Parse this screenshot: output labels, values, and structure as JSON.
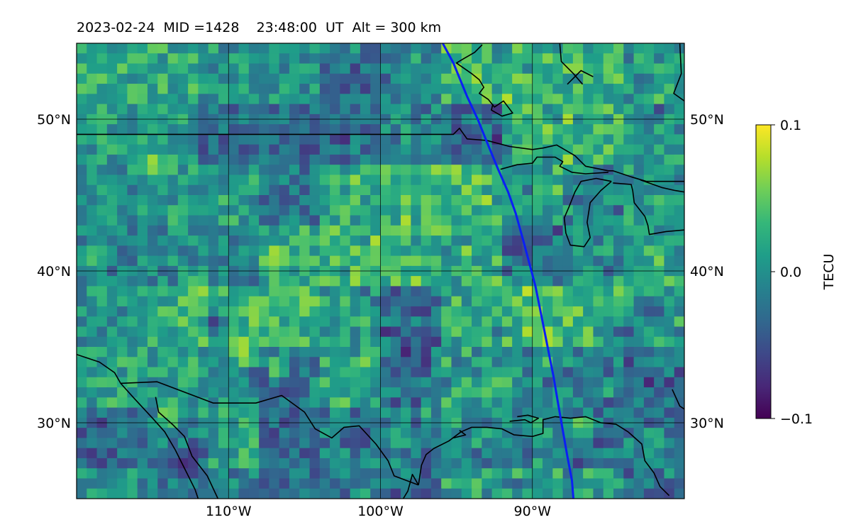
{
  "title": "2023-02-24  MID =1428    23:48:00  UT  Alt = 300 km",
  "map": {
    "lon_range": [
      -120,
      -80
    ],
    "lat_range": [
      25,
      55
    ],
    "meridians": [
      -110,
      -100,
      -90
    ],
    "parallels": [
      30,
      40,
      50
    ],
    "lon_labels": [
      "110°W",
      "100°W",
      "90°W"
    ],
    "lat_labels": [
      "30°N",
      "40°N",
      "50°N"
    ],
    "track_color": "#0b1ff5",
    "track": [
      [
        -95.9,
        55
      ],
      [
        -95.2,
        53.7
      ],
      [
        -94.3,
        51.5
      ],
      [
        -93.6,
        50
      ],
      [
        -93.0,
        48.5
      ],
      [
        -92.3,
        46.8
      ],
      [
        -91.6,
        45.2
      ],
      [
        -91.1,
        43.8
      ],
      [
        -90.6,
        42
      ],
      [
        -90.2,
        40.5
      ],
      [
        -89.8,
        39
      ],
      [
        -89.5,
        37.5
      ],
      [
        -89.2,
        36
      ],
      [
        -88.9,
        34.5
      ],
      [
        -88.6,
        33
      ],
      [
        -88.3,
        31.2
      ],
      [
        -88.0,
        29.5
      ],
      [
        -87.7,
        27.8
      ],
      [
        -87.4,
        26.2
      ],
      [
        -87.3,
        25
      ]
    ],
    "grid": {
      "nx": 60,
      "ny": 45,
      "tile": 6,
      "seed": 1428,
      "range": [
        -0.1,
        0.1
      ]
    },
    "hotspots": [
      {
        "lon": -115,
        "lat": 47,
        "val": 0.1
      },
      {
        "lon": -112,
        "lat": 39,
        "val": 0.1
      },
      {
        "lon": -114,
        "lat": 30.5,
        "val": 0.1
      },
      {
        "lon": -107,
        "lat": 41,
        "val": 0.1
      },
      {
        "lon": -109,
        "lat": 34.5,
        "val": 0.1
      },
      {
        "lon": -107,
        "lat": 33.5,
        "val": 0.1
      },
      {
        "lon": -112,
        "lat": 28,
        "val": -0.1
      },
      {
        "lon": -113,
        "lat": 27.2,
        "val": -0.1
      },
      {
        "lon": -101.5,
        "lat": 29,
        "val": -0.08
      },
      {
        "lon": -106,
        "lat": 32.3,
        "val": -0.1
      },
      {
        "lon": -108,
        "lat": 33,
        "val": -0.1
      },
      {
        "lon": -111,
        "lat": 36.5,
        "val": -0.09
      },
      {
        "lon": -86.7,
        "lat": 29.8,
        "val": 0.1
      },
      {
        "lon": -82,
        "lat": 37.5,
        "val": -0.09
      },
      {
        "lon": -84,
        "lat": 36,
        "val": -0.09
      },
      {
        "lon": -92,
        "lat": 32.5,
        "val": 0.08
      },
      {
        "lon": -94,
        "lat": 48.8,
        "val": -0.08
      },
      {
        "lon": -89,
        "lat": 49.2,
        "val": 0.09
      },
      {
        "lon": -91,
        "lat": 42,
        "val": -0.08
      },
      {
        "lon": -119,
        "lat": 41,
        "val": 0.07
      }
    ],
    "coastlines": [
      [
        [
          -120,
          49
        ],
        [
          -95.2,
          49
        ],
        [
          -94.8,
          49.4
        ],
        [
          -94.3,
          48.7
        ],
        [
          -93,
          48.6
        ],
        [
          -91.5,
          48.2
        ],
        [
          -90,
          48
        ],
        [
          -89.3,
          48.1
        ],
        [
          -88.4,
          48.3
        ],
        [
          -87.2,
          47.6
        ],
        [
          -86.5,
          46.9
        ],
        [
          -85,
          46.6
        ],
        [
          -84.7,
          46.6
        ],
        [
          -83.5,
          46.2
        ],
        [
          -82.5,
          45.9
        ],
        [
          -80,
          45.9
        ]
      ],
      [
        [
          -92.1,
          46.7
        ],
        [
          -91,
          47
        ],
        [
          -90,
          47.1
        ],
        [
          -89.7,
          47.5
        ],
        [
          -88.5,
          47.5
        ],
        [
          -88,
          47.2
        ],
        [
          -88.2,
          46.9
        ],
        [
          -87.4,
          46.5
        ],
        [
          -86.5,
          46.4
        ],
        [
          -85,
          46.5
        ]
      ],
      [
        [
          -84.8,
          45.9
        ],
        [
          -85.5,
          45.3
        ],
        [
          -86.2,
          44.5
        ],
        [
          -86.4,
          43.2
        ],
        [
          -86.2,
          42.2
        ],
        [
          -86.6,
          41.6
        ],
        [
          -87.5,
          41.7
        ],
        [
          -87.8,
          42.5
        ],
        [
          -87.9,
          43.5
        ],
        [
          -87.6,
          44.2
        ],
        [
          -87.2,
          45.2
        ],
        [
          -86.8,
          45.9
        ],
        [
          -85.8,
          46.1
        ],
        [
          -84.8,
          45.9
        ]
      ],
      [
        [
          -84.7,
          45.8
        ],
        [
          -83.5,
          45.7
        ],
        [
          -83.4,
          45.3
        ],
        [
          -83.3,
          44.5
        ],
        [
          -82.6,
          43.6
        ],
        [
          -82.4,
          43.0
        ],
        [
          -82.3,
          42.4
        ],
        [
          -81.2,
          42.6
        ],
        [
          -80,
          42.7
        ]
      ],
      [
        [
          -82.9,
          46.0
        ],
        [
          -81.5,
          45.5
        ],
        [
          -80.6,
          45.3
        ],
        [
          -80,
          45.2
        ]
      ],
      [
        [
          -120,
          34.5
        ],
        [
          -118.5,
          34
        ],
        [
          -117.5,
          33.3
        ],
        [
          -117.1,
          32.6
        ],
        [
          -116.2,
          31.6
        ],
        [
          -115,
          30.3
        ],
        [
          -114.2,
          29.4
        ],
        [
          -113.5,
          28.2
        ],
        [
          -112.8,
          26.8
        ],
        [
          -112.2,
          25.6
        ],
        [
          -112,
          25
        ]
      ],
      [
        [
          -114.8,
          31.7
        ],
        [
          -114.6,
          30.7
        ],
        [
          -113.7,
          29.9
        ],
        [
          -112.9,
          29.1
        ],
        [
          -112.4,
          27.8
        ],
        [
          -111.4,
          26.5
        ],
        [
          -110.7,
          25
        ]
      ],
      [
        [
          -117.1,
          32.6
        ],
        [
          -114.7,
          32.7
        ],
        [
          -111,
          31.3
        ],
        [
          -108.2,
          31.3
        ],
        [
          -106.5,
          31.8
        ],
        [
          -105,
          30.7
        ],
        [
          -104.3,
          29.6
        ],
        [
          -103.2,
          29.0
        ],
        [
          -102.4,
          29.7
        ],
        [
          -101.4,
          29.8
        ],
        [
          -100.3,
          28.6
        ],
        [
          -99.5,
          27.5
        ],
        [
          -99.1,
          26.5
        ],
        [
          -97.5,
          25.9
        ]
      ],
      [
        [
          -97.5,
          25.9
        ],
        [
          -97.3,
          27.2
        ],
        [
          -97.0,
          27.9
        ],
        [
          -96.5,
          28.3
        ],
        [
          -95.5,
          28.8
        ],
        [
          -94.7,
          29.4
        ],
        [
          -94,
          29.7
        ],
        [
          -93,
          29.7
        ],
        [
          -92,
          29.6
        ],
        [
          -91.2,
          29.2
        ],
        [
          -90,
          29.1
        ],
        [
          -89.3,
          29.3
        ],
        [
          -89.3,
          30.2
        ],
        [
          -88.5,
          30.4
        ],
        [
          -87.5,
          30.3
        ],
        [
          -86.5,
          30.4
        ],
        [
          -85.5,
          30.0
        ],
        [
          -84.5,
          29.9
        ],
        [
          -83.7,
          29.4
        ],
        [
          -82.8,
          28.6
        ],
        [
          -82.6,
          27.5
        ],
        [
          -82.0,
          26.7
        ],
        [
          -81.6,
          25.8
        ],
        [
          -81.0,
          25.2
        ]
      ],
      [
        [
          -94.8,
          29.5
        ],
        [
          -94.4,
          29.2
        ],
        [
          -95.2,
          29.0
        ]
      ],
      [
        [
          -91.5,
          30.1
        ],
        [
          -90.5,
          30.2
        ],
        [
          -90.1,
          30.0
        ],
        [
          -89.6,
          30.3
        ],
        [
          -90.3,
          30.5
        ],
        [
          -91,
          30.4
        ]
      ],
      [
        [
          -80.8,
          32.2
        ],
        [
          -80.3,
          31.1
        ],
        [
          -80,
          30.9
        ]
      ],
      [
        [
          -98.5,
          25
        ],
        [
          -98.2,
          25.5
        ],
        [
          -97.9,
          26.6
        ],
        [
          -97.5,
          25.9
        ]
      ],
      [
        [
          -80.3,
          55
        ],
        [
          -80.2,
          53
        ],
        [
          -80.7,
          51.7
        ],
        [
          -80,
          51.2
        ]
      ],
      [
        [
          -87.7,
          52.3
        ],
        [
          -86.8,
          53.2
        ],
        [
          -86,
          52.8
        ]
      ],
      [
        [
          -93.3,
          54.9
        ],
        [
          -93.8,
          54.4
        ],
        [
          -94.5,
          54.0
        ],
        [
          -95.0,
          53.7
        ],
        [
          -94.0,
          53.0
        ],
        [
          -93.5,
          52.6
        ],
        [
          -93.2,
          52.1
        ],
        [
          -93.5,
          51.7
        ],
        [
          -92.9,
          51.3
        ],
        [
          -92.5,
          50.8
        ],
        [
          -91.9,
          51.2
        ],
        [
          -91.3,
          50.4
        ],
        [
          -92.0,
          50.2
        ],
        [
          -92.7,
          50.6
        ],
        [
          -92.6,
          51.0
        ]
      ],
      [
        [
          -88.2,
          55
        ],
        [
          -88.1,
          53.8
        ],
        [
          -87.3,
          53.0
        ],
        [
          -86.7,
          52.3
        ]
      ]
    ]
  },
  "colorbar": {
    "label": "TECU",
    "ticks": [
      "0.1",
      "0.0",
      "−0.1"
    ],
    "tick_values": [
      0.1,
      0.0,
      -0.1
    ],
    "colormap": [
      "#440154",
      "#482878",
      "#3e4989",
      "#31688e",
      "#26828e",
      "#1f9e89",
      "#35b779",
      "#6ece58",
      "#b5de2b",
      "#fde725"
    ]
  }
}
